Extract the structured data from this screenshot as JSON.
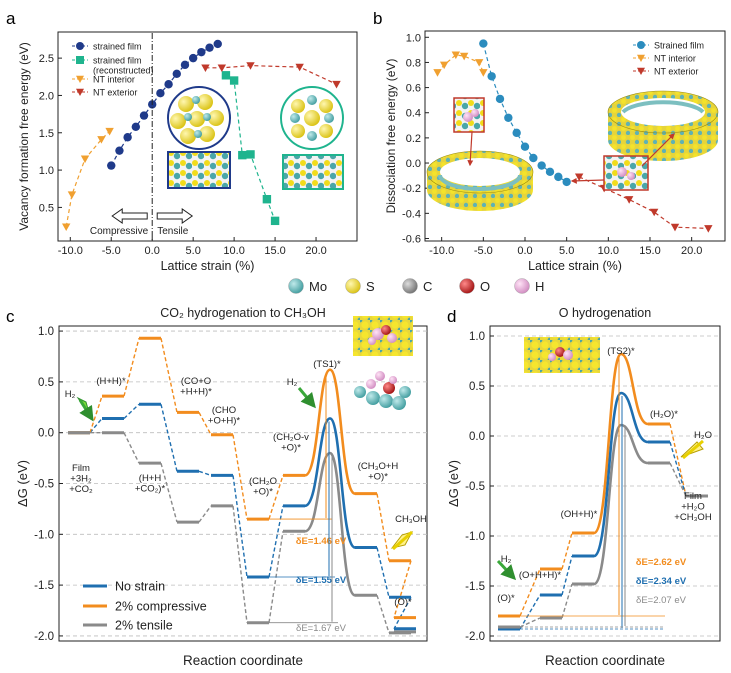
{
  "figure": {
    "panel_labels": [
      "a",
      "b",
      "c",
      "d"
    ],
    "atom_legend": [
      {
        "symbol": "Mo",
        "color": "#4aa6a8"
      },
      {
        "symbol": "S",
        "color": "#f2dc1b"
      },
      {
        "symbol": "C",
        "color": "#8a8a8a"
      },
      {
        "symbol": "O",
        "color": "#c41a1a"
      },
      {
        "symbol": "H",
        "color": "#e8a6d8"
      }
    ]
  },
  "chart_data": [
    {
      "id": "a",
      "type": "scatter",
      "xlabel": "Lattice strain (%)",
      "ylabel": "Vacancy formation free energy (eV)",
      "xlim": [
        -11.5,
        25
      ],
      "ylim": [
        0.05,
        2.85
      ],
      "xticks": [
        -10.0,
        -5.0,
        0.0,
        5.0,
        10.0,
        15.0,
        20.0
      ],
      "xtick_labels": [
        "-10.0",
        "-5.0",
        "0.0",
        "5.0",
        "10.0",
        "15.0",
        "20.0"
      ],
      "yticks": [
        0.5,
        1.0,
        1.5,
        2.0,
        2.5
      ],
      "ytick_labels": [
        "0.5",
        "1.0",
        "1.5",
        "2.0",
        "2.5"
      ],
      "annotations": {
        "compressive": "Compressive",
        "tensile": "Tensile"
      },
      "series": [
        {
          "name": "strained film",
          "marker": "circle",
          "color": "#1f3a8a",
          "x": [
            -5,
            -4,
            -3,
            -2,
            -1,
            0,
            1,
            2,
            3,
            4,
            5,
            6,
            7,
            8
          ],
          "y": [
            1.06,
            1.26,
            1.44,
            1.58,
            1.73,
            1.88,
            2.03,
            2.15,
            2.29,
            2.41,
            2.5,
            2.58,
            2.64,
            2.69
          ]
        },
        {
          "name": "strained film\n(reconstructed)",
          "marker": "square",
          "color": "#1fb48e",
          "x": [
            9,
            10,
            11,
            12,
            14,
            15
          ],
          "y": [
            2.27,
            2.2,
            1.2,
            1.21,
            0.61,
            0.32
          ]
        },
        {
          "name": "NT interior",
          "marker": "triangle-down",
          "color": "#f0a030",
          "x": [
            -10.5,
            -9.8,
            -8.2,
            -6.2,
            -5.2
          ],
          "y": [
            0.24,
            0.67,
            1.15,
            1.41,
            1.52
          ]
        },
        {
          "name": "NT exterior",
          "marker": "triangle-down",
          "color": "#c0392b",
          "x": [
            6.5,
            8.5,
            12,
            18,
            22.5
          ],
          "y": [
            2.37,
            2.37,
            2.4,
            2.38,
            2.15
          ]
        }
      ]
    },
    {
      "id": "b",
      "type": "scatter",
      "xlabel": "Lattice strain (%)",
      "ylabel": "Dissociation free energy (eV)",
      "xlim": [
        -12,
        24
      ],
      "ylim": [
        -0.62,
        1.05
      ],
      "xticks": [
        -10.0,
        -5.0,
        0.0,
        5.0,
        10.0,
        15.0,
        20.0
      ],
      "xtick_labels": [
        "-10.0",
        "-5.0",
        "0.0",
        "5.0",
        "10.0",
        "15.0",
        "20.0"
      ],
      "yticks": [
        -0.6,
        -0.4,
        -0.2,
        0.0,
        0.2,
        0.4,
        0.6,
        0.8,
        1.0
      ],
      "ytick_labels": [
        "-0.6",
        "-0.4",
        "-0.2",
        "0.0",
        "0.2",
        "0.4",
        "0.6",
        "0.8",
        "1.0"
      ],
      "series": [
        {
          "name": "Strained film",
          "marker": "circle",
          "color": "#2b8cbe",
          "x": [
            -5,
            -4,
            -3,
            -2,
            -1,
            0,
            1,
            2,
            3,
            4,
            5
          ],
          "y": [
            0.95,
            0.69,
            0.51,
            0.36,
            0.24,
            0.13,
            0.04,
            -0.02,
            -0.07,
            -0.11,
            -0.15
          ]
        },
        {
          "name": "NT interior",
          "marker": "triangle-down",
          "color": "#f0a030",
          "x": [
            -10.5,
            -9.7,
            -8.3,
            -7.3,
            -5.5,
            -5.0
          ],
          "y": [
            0.72,
            0.78,
            0.86,
            0.85,
            0.8,
            0.72
          ]
        },
        {
          "name": "NT exterior",
          "marker": "triangle-down",
          "color": "#c0392b",
          "x": [
            6.5,
            9.5,
            12.5,
            15.5,
            18,
            22
          ],
          "y": [
            -0.11,
            -0.2,
            -0.29,
            -0.39,
            -0.51,
            -0.52
          ]
        }
      ]
    },
    {
      "id": "c",
      "type": "line",
      "title": "CO₂ hydrogenation to CH₃OH",
      "xlabel": "Reaction coordinate",
      "ylabel": "ΔG (eV)",
      "ylim": [
        -2.05,
        1.05
      ],
      "yticks": [
        -2.0,
        -1.5,
        -1.0,
        -0.5,
        0.0,
        0.5,
        1.0
      ],
      "ytick_labels": [
        "-2.0",
        "-1.5",
        "-1.0",
        "-0.5",
        "0.0",
        "0.5",
        "1.0"
      ],
      "legend": [
        "No strain",
        "2% compressive",
        "2% tensile"
      ],
      "state_labels": [
        "Film\n+3H₂\n+CO₂",
        "(H+H)*",
        "(H+H\n+CO₂)*",
        "(CO+O\n+H+H)*",
        "(CHO\n+O+H)*",
        "(CH₂O\n+O)*",
        "(CH₂O-v\n+O)*",
        "(TS1)*",
        "(CH₃O+H\n+O)*",
        "CH₃OH",
        "(O)*",
        "H₂"
      ],
      "delta_labels": [
        "δE=1.46 eV",
        "δE=1.55 eV",
        "δE=1.67 eV"
      ],
      "series": [
        {
          "name": "No strain",
          "color": "#1f6fb0",
          "levels": [
            0.0,
            0.14,
            0.28,
            -0.38,
            -0.42,
            -1.42,
            -0.72,
            0.14,
            -1.13,
            -1.62,
            -1.93
          ]
        },
        {
          "name": "2% compressive",
          "color": "#f28c1e",
          "levels": [
            0.0,
            0.36,
            0.93,
            0.2,
            -0.02,
            -0.85,
            -0.42,
            0.62,
            -0.6,
            -1.26,
            -1.82
          ]
        },
        {
          "name": "2% tensile",
          "color": "#8a8a8a",
          "levels": [
            0.0,
            0.0,
            -0.3,
            -0.88,
            -0.72,
            -1.87,
            -0.97,
            -0.2,
            -1.6,
            -1.97,
            -1.96
          ]
        }
      ]
    },
    {
      "id": "d",
      "type": "line",
      "title": "O hydrogenation",
      "xlabel": "Reaction coordinate",
      "ylabel": "ΔG (eV)",
      "ylim": [
        -2.05,
        1.1
      ],
      "yticks": [
        -2.0,
        -1.5,
        -1.0,
        -0.5,
        0.0,
        0.5,
        1.0
      ],
      "ytick_labels": [
        "-2.0",
        "-1.5",
        "-1.0",
        "-0.5",
        "0.0",
        "0.5",
        "1.0"
      ],
      "state_labels": [
        "(O)*",
        "(O+H+H)*",
        "(OH+H)*",
        "(TS2)*",
        "(H₂O)*",
        "H₂O",
        "Film\n+H₂O\n+CH₃OH",
        "H₂"
      ],
      "delta_labels": [
        "δE=2.62 eV",
        "δE=2.34 eV",
        "δE=2.07 eV"
      ],
      "series": [
        {
          "name": "2% compressive",
          "color": "#f28c1e",
          "levels": [
            -1.8,
            -1.33,
            -0.97,
            0.82,
            0.12,
            -0.6
          ]
        },
        {
          "name": "No strain",
          "color": "#1f6fb0",
          "levels": [
            -1.93,
            -1.59,
            -1.2,
            0.43,
            -0.06,
            -0.6
          ]
        },
        {
          "name": "2% tensile",
          "color": "#8a8a8a",
          "levels": [
            -1.91,
            -1.82,
            -1.48,
            0.11,
            -0.27,
            -0.6
          ]
        }
      ]
    }
  ]
}
